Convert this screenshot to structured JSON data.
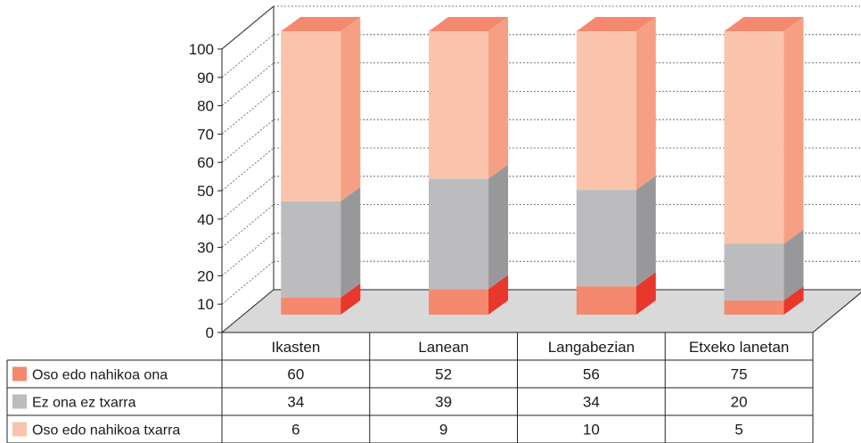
{
  "chart_data": {
    "type": "bar",
    "stacked": true,
    "three_d": true,
    "title": "",
    "xlabel": "",
    "ylabel": "",
    "ylim": [
      0,
      100
    ],
    "yticks": [
      0,
      10,
      20,
      30,
      40,
      50,
      60,
      70,
      80,
      90,
      100
    ],
    "grid": true,
    "legend": "data-table-left",
    "categories": [
      "Ikasten",
      "Lanean",
      "Langabezian",
      "Etxeko lanetan"
    ],
    "series": [
      {
        "name": "Oso edo nahikoa txarra",
        "values": [
          6,
          9,
          10,
          5
        ],
        "color": "#f4896f",
        "color_side": "#e8372b",
        "color_top": "#f7a48c"
      },
      {
        "name": "Ez ona ez txarra",
        "values": [
          34,
          39,
          34,
          20
        ],
        "color": "#bcbcbe",
        "color_side": "#98989a",
        "color_top": "#d0d0d2"
      },
      {
        "name": "Oso edo nahikoa ona",
        "values": [
          60,
          52,
          56,
          75
        ],
        "color": "#f9c4ab",
        "color_side": "#f5a085",
        "color_top": "#f4896f"
      }
    ],
    "table_rows": [
      {
        "name": "Oso edo nahikoa ona",
        "values": [
          "60",
          "52",
          "56",
          "75"
        ],
        "color": "#f4896f"
      },
      {
        "name": "Ez ona ez txarra",
        "values": [
          "34",
          "39",
          "34",
          "20"
        ],
        "color": "#bcbcbe"
      },
      {
        "name": "Oso edo nahikoa txarra",
        "values": [
          "6",
          "9",
          "10",
          "5"
        ],
        "color": "#f9c4ab"
      }
    ]
  }
}
